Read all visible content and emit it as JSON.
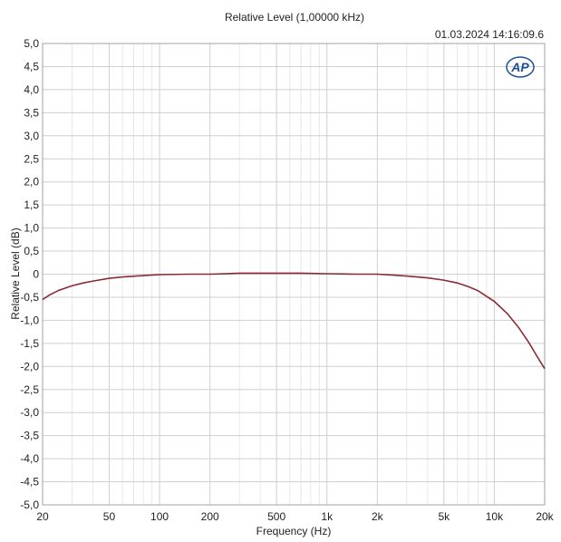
{
  "chart_data": {
    "type": "line",
    "title": "Relative Level (1,00000 kHz)",
    "timestamp": "01.03.2024 14:16:09.6",
    "logo_text": "AP",
    "xlabel": "Frequency (Hz)",
    "ylabel": "Relative Level (dB)",
    "x_scale": "log",
    "xlim": [
      20,
      20000
    ],
    "ylim": [
      -5,
      5
    ],
    "grid": true,
    "x_ticks": [
      {
        "value": 20,
        "label": "20"
      },
      {
        "value": 50,
        "label": "50"
      },
      {
        "value": 100,
        "label": "100"
      },
      {
        "value": 200,
        "label": "200"
      },
      {
        "value": 500,
        "label": "500"
      },
      {
        "value": 1000,
        "label": "1k"
      },
      {
        "value": 2000,
        "label": "2k"
      },
      {
        "value": 5000,
        "label": "5k"
      },
      {
        "value": 10000,
        "label": "10k"
      },
      {
        "value": 20000,
        "label": "20k"
      }
    ],
    "y_ticks": [
      {
        "value": 5,
        "label": "5,0"
      },
      {
        "value": 4.5,
        "label": "4,5"
      },
      {
        "value": 4,
        "label": "4,0"
      },
      {
        "value": 3.5,
        "label": "3,5"
      },
      {
        "value": 3,
        "label": "3,0"
      },
      {
        "value": 2.5,
        "label": "2,5"
      },
      {
        "value": 2,
        "label": "2,0"
      },
      {
        "value": 1.5,
        "label": "1,5"
      },
      {
        "value": 1,
        "label": "1,0"
      },
      {
        "value": 0.5,
        "label": "0,5"
      },
      {
        "value": 0,
        "label": "0"
      },
      {
        "value": -0.5,
        "label": "-0,5"
      },
      {
        "value": -1,
        "label": "-1,0"
      },
      {
        "value": -1.5,
        "label": "-1,5"
      },
      {
        "value": -2,
        "label": "-2,0"
      },
      {
        "value": -2.5,
        "label": "-2,5"
      },
      {
        "value": -3,
        "label": "-3,0"
      },
      {
        "value": -3.5,
        "label": "-3,5"
      },
      {
        "value": -4,
        "label": "-4,0"
      },
      {
        "value": -4.5,
        "label": "-4,5"
      },
      {
        "value": -5,
        "label": "-5,0"
      }
    ],
    "series": [
      {
        "color": "#8b2a35",
        "x": [
          20,
          22,
          25,
          30,
          35,
          40,
          50,
          60,
          80,
          100,
          150,
          200,
          300,
          500,
          700,
          1000,
          1500,
          2000,
          2500,
          3000,
          4000,
          5000,
          6000,
          7000,
          8000,
          10000,
          12000,
          14000,
          16000,
          18000,
          20000
        ],
        "y": [
          -0.55,
          -0.45,
          -0.35,
          -0.25,
          -0.19,
          -0.15,
          -0.09,
          -0.06,
          -0.03,
          -0.01,
          0.0,
          0.0,
          0.02,
          0.02,
          0.02,
          0.01,
          0.0,
          0.0,
          -0.02,
          -0.04,
          -0.08,
          -0.13,
          -0.19,
          -0.27,
          -0.36,
          -0.59,
          -0.86,
          -1.16,
          -1.47,
          -1.78,
          -2.05
        ]
      }
    ]
  },
  "colors": {
    "grid_major": "#cfcfcf",
    "grid_minor": "#e8e8e8",
    "axis": "#a0a0a0",
    "logo": "#1f4f9a"
  }
}
